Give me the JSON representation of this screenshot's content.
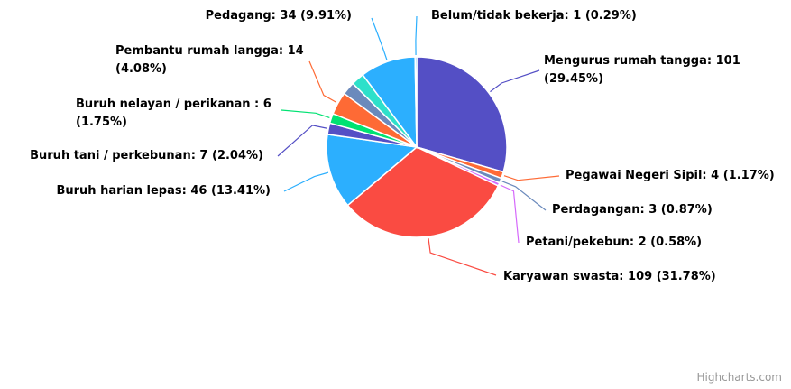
{
  "chart_data": {
    "type": "pie",
    "values": [
      101,
      4,
      3,
      2,
      109,
      46,
      7,
      6,
      14,
      8,
      8,
      34,
      1
    ],
    "value_labels": [
      "Mengurus rumah tangga: 101 (29.45%)",
      "Pegawai Negeri Sipil: 4 (1.17%)",
      "Perdagangan: 3 (0.87%)",
      "Petani/pekebun: 2 (0.58%)",
      "Karyawan swasta: 109 (31.78%)",
      "Buruh harian lepas: 46 (13.41%)",
      "Buruh tani / perkebunan: 7 (2.04%)",
      "Buruh nelayan / perikanan : 6 (1.75%)",
      "Pembantu rumah langga: 14 (4.08%)",
      null,
      null,
      "Pedagang: 34 (9.91%)",
      "Belum/tidak bekerja: 1 (0.29%)"
    ],
    "colors": [
      "#544fc5",
      "#fe6a35",
      "#6b8abc",
      "#d568fb",
      "#fa4b42",
      "#2caffe",
      "#544fc5",
      "#00e272",
      "#fe6a35",
      "#6b8abc",
      "#2ee0ca",
      "#2caffe",
      "#2caffe"
    ],
    "credits": "Highcharts.com"
  }
}
